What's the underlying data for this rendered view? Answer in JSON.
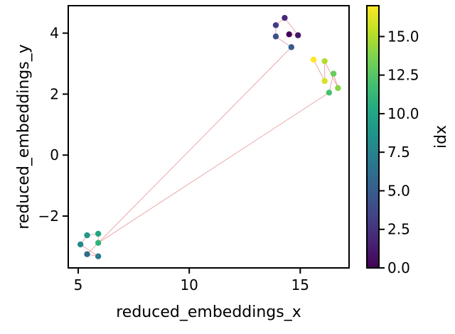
{
  "chart_data": {
    "type": "scatter",
    "title": "",
    "xlabel": "reduced_embeddings_x",
    "ylabel": "reduced_embeddings_y",
    "xlim": [
      4.55,
      17.2
    ],
    "ylim": [
      -3.7,
      4.9
    ],
    "xticks": [
      5,
      10,
      15
    ],
    "xtick_labels": [
      "5",
      "10",
      "15"
    ],
    "yticks": [
      -2,
      0,
      2,
      4
    ],
    "ytick_labels": [
      "−2",
      "0",
      "2",
      "4"
    ],
    "colorbar": {
      "label": "idx",
      "range": [
        0,
        17
      ],
      "colormap": "viridis",
      "ticks": [
        0,
        2.5,
        5,
        7.5,
        10,
        12.5,
        15
      ],
      "tick_labels": [
        "0.0",
        "2.5",
        "5.0",
        "7.5",
        "10.0",
        "12.5",
        "15.0"
      ]
    },
    "line_color": "#e8a0a0",
    "points": [
      {
        "idx": 0,
        "x": 14.5,
        "y": 3.96
      },
      {
        "idx": 1,
        "x": 14.9,
        "y": 3.93
      },
      {
        "idx": 2,
        "x": 14.3,
        "y": 4.5
      },
      {
        "idx": 3,
        "x": 13.9,
        "y": 4.26
      },
      {
        "idx": 4,
        "x": 13.9,
        "y": 3.89
      },
      {
        "idx": 5,
        "x": 14.6,
        "y": 3.54
      },
      {
        "idx": 6,
        "x": 5.4,
        "y": -3.25
      },
      {
        "idx": 7,
        "x": 5.9,
        "y": -3.32
      },
      {
        "idx": 8,
        "x": 5.1,
        "y": -2.93
      },
      {
        "idx": 9,
        "x": 5.4,
        "y": -2.63
      },
      {
        "idx": 10,
        "x": 5.9,
        "y": -2.58
      },
      {
        "idx": 11,
        "x": 5.9,
        "y": -2.88
      },
      {
        "idx": 12,
        "x": 16.3,
        "y": 2.05
      },
      {
        "idx": 13,
        "x": 16.5,
        "y": 2.67
      },
      {
        "idx": 14,
        "x": 16.7,
        "y": 2.2
      },
      {
        "idx": 15,
        "x": 16.1,
        "y": 3.08
      },
      {
        "idx": 16,
        "x": 16.1,
        "y": 2.43
      },
      {
        "idx": 17,
        "x": 15.6,
        "y": 3.13
      }
    ]
  }
}
